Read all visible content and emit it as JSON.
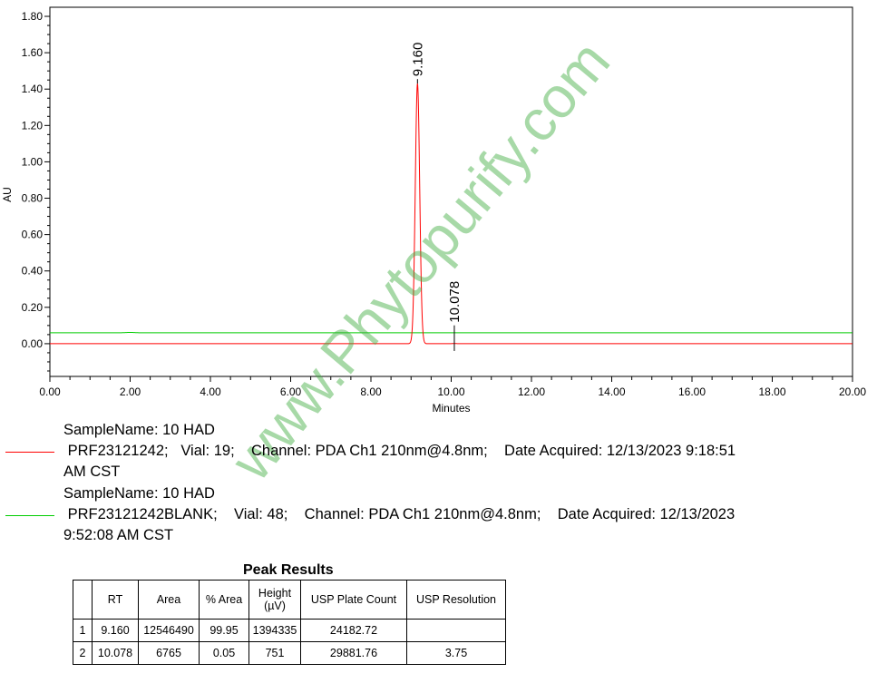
{
  "chart_data": {
    "type": "line",
    "xlabel": "Minutes",
    "ylabel": "AU",
    "xlim": [
      0,
      20
    ],
    "ylim": [
      -0.18,
      1.85
    ],
    "xticks": [
      "0.00",
      "2.00",
      "4.00",
      "6.00",
      "8.00",
      "10.00",
      "12.00",
      "14.00",
      "16.00",
      "18.00",
      "20.00"
    ],
    "yticks": [
      "0.00",
      "0.20",
      "0.40",
      "0.60",
      "0.80",
      "1.00",
      "1.20",
      "1.40",
      "1.60",
      "1.80"
    ],
    "grid": false,
    "series": [
      {
        "color": "#ff0000",
        "baseline": 0.0,
        "peaks": [
          {
            "rt": 9.16,
            "height": 1.43,
            "label": "9.160"
          },
          {
            "rt": 10.078,
            "height": 0.001,
            "label": "10.078"
          }
        ]
      },
      {
        "color": "#00cc00",
        "baseline": 0.06,
        "peaks": []
      }
    ]
  },
  "legend": [
    {
      "color": "#ff0000",
      "lines": [
        "SampleName: 10 HAD",
        " PRF23121242;   Vial: 19;    Channel: PDA Ch1 210nm@4.8nm;    Date Acquired: 12/13/2023 9:18:51",
        "AM CST"
      ]
    },
    {
      "color": "#00cc00",
      "lines": [
        "SampleName: 10 HAD",
        " PRF23121242BLANK;    Vial: 48;    Channel: PDA Ch1 210nm@4.8nm;    Date Acquired: 12/13/2023",
        "9:52:08 AM CST"
      ]
    }
  ],
  "watermark": "www.Phytopurify.com",
  "peak_results": {
    "title": "Peak Results",
    "headers": [
      "",
      "RT",
      "Area",
      "% Area",
      "Height (µV)",
      "USP Plate Count",
      "USP Resolution"
    ],
    "rows": [
      [
        "1",
        "9.160",
        "12546490",
        "99.95",
        "1394335",
        "24182.72",
        ""
      ],
      [
        "2",
        "10.078",
        "6765",
        "0.05",
        "751",
        "29881.76",
        "3.75"
      ]
    ]
  }
}
